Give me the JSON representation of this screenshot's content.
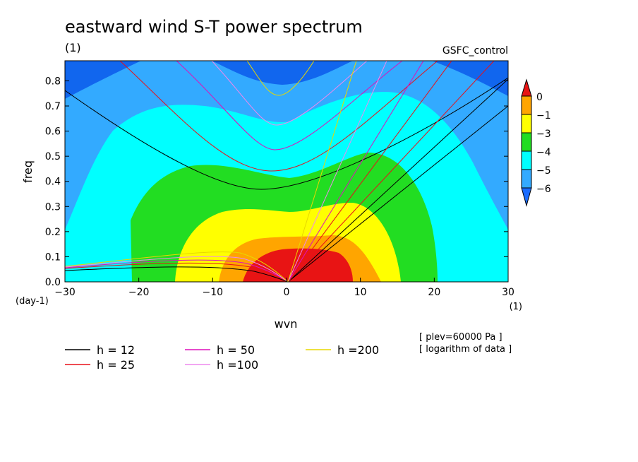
{
  "chart_data": {
    "type": "heatmap",
    "title": "eastward wind S-T power spectrum",
    "units_label": "(1)",
    "dataset": "GSFC_control",
    "xlabel": "wvn",
    "ylabel": "freq",
    "x_units": "(1)",
    "y_units": "(day-1)",
    "xlim": [
      -30,
      30
    ],
    "ylim": [
      0,
      0.88
    ],
    "x_ticks": [
      "−30",
      "−20",
      "−10",
      "0",
      "10",
      "20",
      "30"
    ],
    "y_ticks": [
      "0.0",
      "0.1",
      "0.2",
      "0.3",
      "0.4",
      "0.5",
      "0.6",
      "0.7",
      "0.8"
    ],
    "colorbar": {
      "labels": [
        "0",
        "−1",
        "−3",
        "−4",
        "−5",
        "−6"
      ],
      "colors": [
        "#e81414",
        "#ffa500",
        "#ffff00",
        "#22dd22",
        "#00ffff",
        "#33aaff",
        "#1166ee",
        "#ff2020",
        "#1a6cff"
      ]
    },
    "contour_regions": [
      {
        "level": "< −6",
        "color": "#1166ee",
        "role": "background corners"
      },
      {
        "level": "−6 to −5",
        "color": "#33aaff",
        "peak_freq": 0.88,
        "x_extent": [
          -30,
          30
        ]
      },
      {
        "level": "−5 to −4",
        "color": "#00ffff",
        "x_extent": [
          -30,
          30
        ],
        "y_extent": [
          0,
          0.76
        ]
      },
      {
        "level": "−4 to −3",
        "color": "#22dd22",
        "x_extent": [
          -21,
          20
        ],
        "y_extent": [
          0,
          0.52
        ]
      },
      {
        "level": "−3 to −1",
        "color": "#ffff00",
        "x_extent": [
          -15,
          16
        ],
        "y_extent": [
          0,
          0.34
        ]
      },
      {
        "level": "−1 to 0",
        "color": "#ffa500",
        "x_extent": [
          -9,
          13
        ],
        "y_extent": [
          0,
          0.2
        ]
      },
      {
        "level": "> 0",
        "color": "#e81414",
        "x_extent": [
          -6,
          9
        ],
        "y_extent": [
          0,
          0.13
        ]
      }
    ],
    "dispersion_curves": [
      {
        "name": "h = 12",
        "color": "#000000"
      },
      {
        "name": "h = 25",
        "color": "#e8101a"
      },
      {
        "name": "h = 50",
        "color": "#dd11bb"
      },
      {
        "name": "h =100",
        "color": "#ee88ee"
      },
      {
        "name": "h =200",
        "color": "#e8d800"
      }
    ],
    "annotations": [
      "[ plev=60000 Pa ]",
      "[ logarithm of data ]"
    ]
  }
}
